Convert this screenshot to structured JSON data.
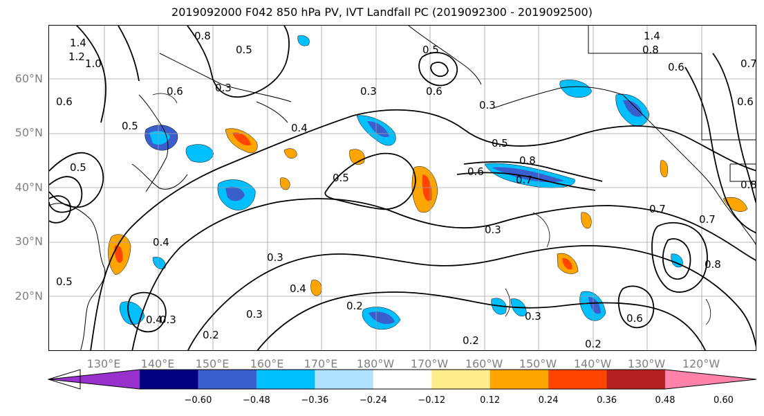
{
  "title": "2019092000 F042 850 hPa PV, IVT Landfall PC (2019092300 - 2019092500)",
  "lat_labels": [
    "60°N",
    "50°N",
    "40°N",
    "30°N",
    "20°N"
  ],
  "lon_labels": [
    "130°E",
    "140°E",
    "150°E",
    "160°E",
    "170°E",
    "180°W",
    "170°W",
    "160°W",
    "150°W",
    "140°W",
    "130°W",
    "120°W"
  ],
  "contour_labels": [
    "1.4",
    "1.2",
    "1.0",
    "0.8",
    "0.6",
    "0.5",
    "0.3",
    "0.5",
    "0.6",
    "0.5",
    "0.4",
    "0.3",
    "0.5",
    "0.8",
    "0.6",
    "0.7",
    "0.5",
    "0.4",
    "0.3",
    "0.5",
    "0.3",
    "0.4",
    "0.3",
    "0.2",
    "0.2",
    "0.3",
    "0.4",
    "0.2",
    "0.7",
    "0.3",
    "0.8",
    "0.6",
    "0.2",
    "1.4",
    "0.8",
    "0.6",
    "0.7",
    "0.8",
    "0.6",
    "0.6",
    "0.5",
    "0.3",
    "0.7"
  ],
  "colorbar": {
    "ticks": [
      "−0.60",
      "−0.48",
      "−0.36",
      "−0.24",
      "−0.12",
      "0.12",
      "0.24",
      "0.36",
      "0.48",
      "0.60"
    ],
    "colors": [
      "#9932cc",
      "#000080",
      "#3a5fcd",
      "#00bfff",
      "#b0e2ff",
      "#ffffff",
      "#ffec8b",
      "#ffa500",
      "#ff4500",
      "#b22222",
      "#ff82ab"
    ]
  }
}
